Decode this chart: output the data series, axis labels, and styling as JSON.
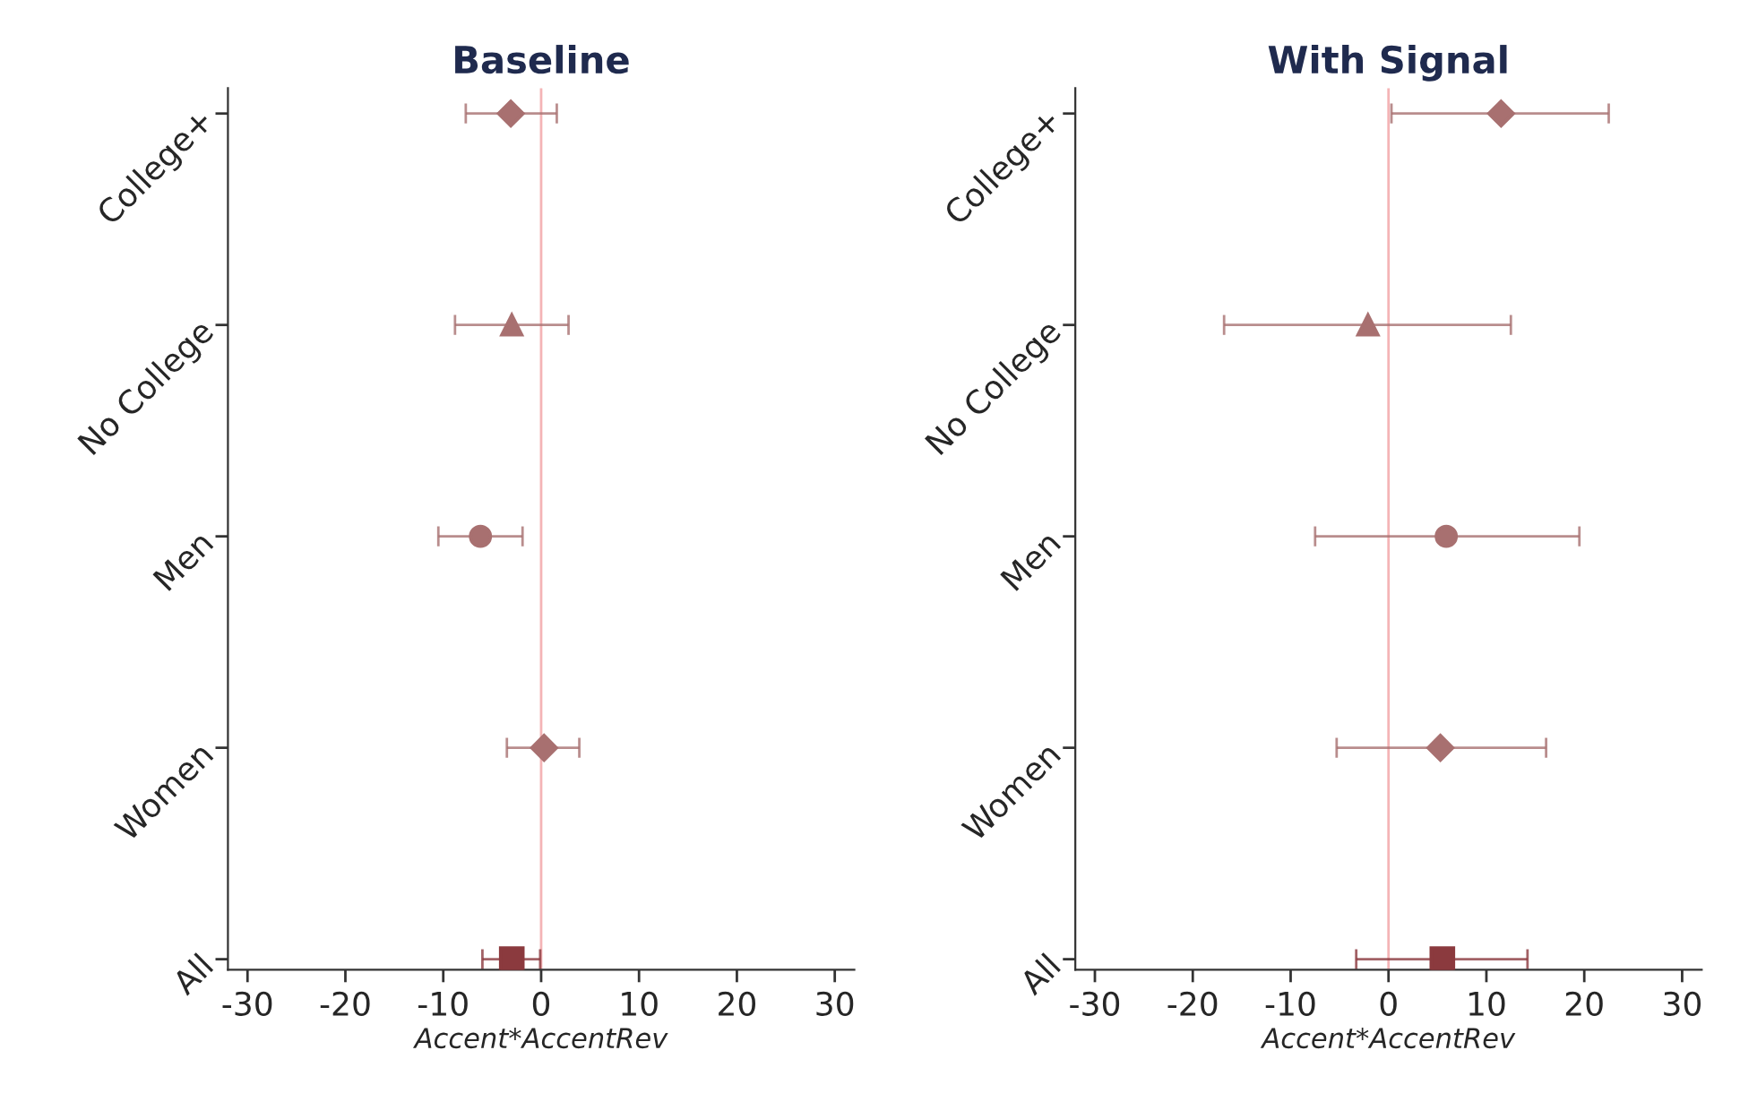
{
  "chart_data": [
    {
      "type": "scatter",
      "orientation": "horizontal",
      "title": "Baseline",
      "xlabel": "Accent*AccentRev",
      "categories": [
        "College+",
        "No College",
        "Men",
        "Women",
        "All"
      ],
      "xlim": [
        -32,
        32
      ],
      "xticks": [
        -30,
        -20,
        -10,
        0,
        10,
        20,
        30
      ],
      "grid": false,
      "legend": false,
      "ref_lines": [
        {
          "axis": "x",
          "value": 0,
          "color": "#f4b4b6"
        }
      ],
      "series": [
        {
          "color": "#a87070",
          "marker": "diamond",
          "values": [
            -3.1,
            null,
            null,
            null,
            null
          ],
          "errors": [
            [
              -7.7,
              1.6
            ],
            null,
            null,
            null,
            null
          ]
        },
        {
          "color": "#a87070",
          "marker": "triangle",
          "values": [
            null,
            -3.0,
            null,
            null,
            null
          ],
          "errors": [
            null,
            [
              -8.8,
              2.8
            ],
            null,
            null,
            null
          ]
        },
        {
          "color": "#a87070",
          "marker": "circle",
          "values": [
            null,
            null,
            -6.2,
            null,
            null
          ],
          "errors": [
            null,
            null,
            [
              -10.5,
              -1.9
            ],
            null,
            null
          ]
        },
        {
          "color": "#a87070",
          "marker": "diamond",
          "values": [
            null,
            null,
            null,
            0.3,
            null
          ],
          "errors": [
            null,
            null,
            null,
            [
              -3.5,
              3.9
            ],
            null
          ]
        },
        {
          "color": "#8b3a3e",
          "marker": "square",
          "values": [
            null,
            null,
            null,
            null,
            -3.0
          ],
          "errors": [
            null,
            null,
            null,
            null,
            [
              -6.0,
              -0.1
            ]
          ]
        }
      ]
    },
    {
      "type": "scatter",
      "orientation": "horizontal",
      "title": "With Signal",
      "xlabel": "Accent*AccentRev",
      "categories": [
        "College+",
        "No College",
        "Men",
        "Women",
        "All"
      ],
      "xlim": [
        -32,
        32
      ],
      "xticks": [
        -30,
        -20,
        -10,
        0,
        10,
        20,
        30
      ],
      "grid": false,
      "legend": false,
      "ref_lines": [
        {
          "axis": "x",
          "value": 0,
          "color": "#f4b4b6"
        }
      ],
      "series": [
        {
          "color": "#a87070",
          "marker": "diamond",
          "values": [
            11.5,
            null,
            null,
            null,
            null
          ],
          "errors": [
            [
              0.3,
              22.5
            ],
            null,
            null,
            null,
            null
          ]
        },
        {
          "color": "#a87070",
          "marker": "triangle",
          "values": [
            null,
            -2.1,
            null,
            null,
            null
          ],
          "errors": [
            null,
            [
              -16.8,
              12.5
            ],
            null,
            null,
            null
          ]
        },
        {
          "color": "#a87070",
          "marker": "circle",
          "values": [
            null,
            null,
            5.9,
            null,
            null
          ],
          "errors": [
            null,
            null,
            [
              -7.5,
              19.5
            ],
            null,
            null
          ]
        },
        {
          "color": "#a87070",
          "marker": "diamond",
          "values": [
            null,
            null,
            null,
            5.3,
            null
          ],
          "errors": [
            null,
            null,
            null,
            [
              -5.3,
              16.1
            ],
            null
          ]
        },
        {
          "color": "#8b3a3e",
          "marker": "square",
          "values": [
            null,
            null,
            null,
            null,
            5.5
          ],
          "errors": [
            null,
            null,
            null,
            null,
            [
              -3.3,
              14.2
            ]
          ]
        }
      ]
    }
  ]
}
